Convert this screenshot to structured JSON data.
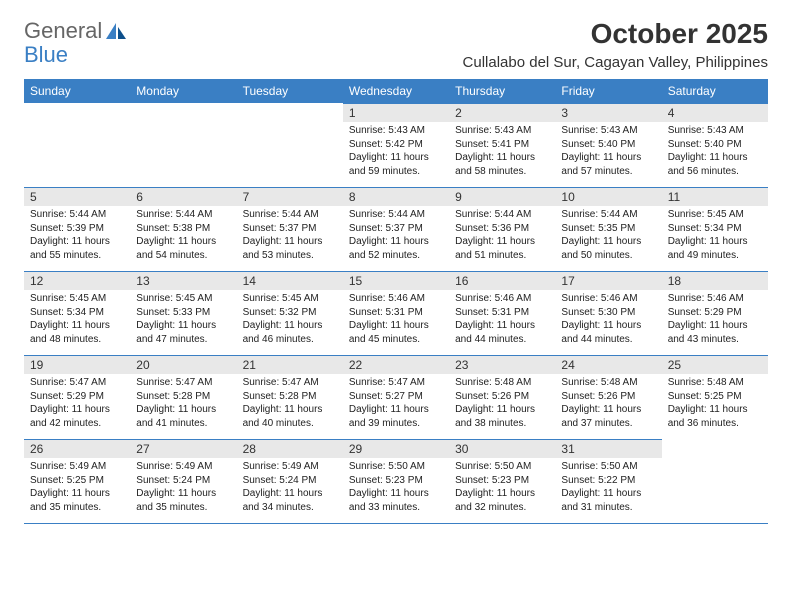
{
  "brand": {
    "part1": "General",
    "part2": "Blue"
  },
  "title": "October 2025",
  "location": "Cullalabo del Sur, Cagayan Valley, Philippines",
  "colors": {
    "header_bg": "#3a7fc4",
    "header_text": "#ffffff",
    "daynum_bg": "#e8e8e8",
    "border": "#3a7fc4",
    "brand_gray": "#666666",
    "brand_blue": "#3a7fc4"
  },
  "weekdays": [
    "Sunday",
    "Monday",
    "Tuesday",
    "Wednesday",
    "Thursday",
    "Friday",
    "Saturday"
  ],
  "weeks": [
    [
      {
        "day": "",
        "sunrise": "",
        "sunset": "",
        "daylight": ""
      },
      {
        "day": "",
        "sunrise": "",
        "sunset": "",
        "daylight": ""
      },
      {
        "day": "",
        "sunrise": "",
        "sunset": "",
        "daylight": ""
      },
      {
        "day": "1",
        "sunrise": "Sunrise: 5:43 AM",
        "sunset": "Sunset: 5:42 PM",
        "daylight": "Daylight: 11 hours and 59 minutes."
      },
      {
        "day": "2",
        "sunrise": "Sunrise: 5:43 AM",
        "sunset": "Sunset: 5:41 PM",
        "daylight": "Daylight: 11 hours and 58 minutes."
      },
      {
        "day": "3",
        "sunrise": "Sunrise: 5:43 AM",
        "sunset": "Sunset: 5:40 PM",
        "daylight": "Daylight: 11 hours and 57 minutes."
      },
      {
        "day": "4",
        "sunrise": "Sunrise: 5:43 AM",
        "sunset": "Sunset: 5:40 PM",
        "daylight": "Daylight: 11 hours and 56 minutes."
      }
    ],
    [
      {
        "day": "5",
        "sunrise": "Sunrise: 5:44 AM",
        "sunset": "Sunset: 5:39 PM",
        "daylight": "Daylight: 11 hours and 55 minutes."
      },
      {
        "day": "6",
        "sunrise": "Sunrise: 5:44 AM",
        "sunset": "Sunset: 5:38 PM",
        "daylight": "Daylight: 11 hours and 54 minutes."
      },
      {
        "day": "7",
        "sunrise": "Sunrise: 5:44 AM",
        "sunset": "Sunset: 5:37 PM",
        "daylight": "Daylight: 11 hours and 53 minutes."
      },
      {
        "day": "8",
        "sunrise": "Sunrise: 5:44 AM",
        "sunset": "Sunset: 5:37 PM",
        "daylight": "Daylight: 11 hours and 52 minutes."
      },
      {
        "day": "9",
        "sunrise": "Sunrise: 5:44 AM",
        "sunset": "Sunset: 5:36 PM",
        "daylight": "Daylight: 11 hours and 51 minutes."
      },
      {
        "day": "10",
        "sunrise": "Sunrise: 5:44 AM",
        "sunset": "Sunset: 5:35 PM",
        "daylight": "Daylight: 11 hours and 50 minutes."
      },
      {
        "day": "11",
        "sunrise": "Sunrise: 5:45 AM",
        "sunset": "Sunset: 5:34 PM",
        "daylight": "Daylight: 11 hours and 49 minutes."
      }
    ],
    [
      {
        "day": "12",
        "sunrise": "Sunrise: 5:45 AM",
        "sunset": "Sunset: 5:34 PM",
        "daylight": "Daylight: 11 hours and 48 minutes."
      },
      {
        "day": "13",
        "sunrise": "Sunrise: 5:45 AM",
        "sunset": "Sunset: 5:33 PM",
        "daylight": "Daylight: 11 hours and 47 minutes."
      },
      {
        "day": "14",
        "sunrise": "Sunrise: 5:45 AM",
        "sunset": "Sunset: 5:32 PM",
        "daylight": "Daylight: 11 hours and 46 minutes."
      },
      {
        "day": "15",
        "sunrise": "Sunrise: 5:46 AM",
        "sunset": "Sunset: 5:31 PM",
        "daylight": "Daylight: 11 hours and 45 minutes."
      },
      {
        "day": "16",
        "sunrise": "Sunrise: 5:46 AM",
        "sunset": "Sunset: 5:31 PM",
        "daylight": "Daylight: 11 hours and 44 minutes."
      },
      {
        "day": "17",
        "sunrise": "Sunrise: 5:46 AM",
        "sunset": "Sunset: 5:30 PM",
        "daylight": "Daylight: 11 hours and 44 minutes."
      },
      {
        "day": "18",
        "sunrise": "Sunrise: 5:46 AM",
        "sunset": "Sunset: 5:29 PM",
        "daylight": "Daylight: 11 hours and 43 minutes."
      }
    ],
    [
      {
        "day": "19",
        "sunrise": "Sunrise: 5:47 AM",
        "sunset": "Sunset: 5:29 PM",
        "daylight": "Daylight: 11 hours and 42 minutes."
      },
      {
        "day": "20",
        "sunrise": "Sunrise: 5:47 AM",
        "sunset": "Sunset: 5:28 PM",
        "daylight": "Daylight: 11 hours and 41 minutes."
      },
      {
        "day": "21",
        "sunrise": "Sunrise: 5:47 AM",
        "sunset": "Sunset: 5:28 PM",
        "daylight": "Daylight: 11 hours and 40 minutes."
      },
      {
        "day": "22",
        "sunrise": "Sunrise: 5:47 AM",
        "sunset": "Sunset: 5:27 PM",
        "daylight": "Daylight: 11 hours and 39 minutes."
      },
      {
        "day": "23",
        "sunrise": "Sunrise: 5:48 AM",
        "sunset": "Sunset: 5:26 PM",
        "daylight": "Daylight: 11 hours and 38 minutes."
      },
      {
        "day": "24",
        "sunrise": "Sunrise: 5:48 AM",
        "sunset": "Sunset: 5:26 PM",
        "daylight": "Daylight: 11 hours and 37 minutes."
      },
      {
        "day": "25",
        "sunrise": "Sunrise: 5:48 AM",
        "sunset": "Sunset: 5:25 PM",
        "daylight": "Daylight: 11 hours and 36 minutes."
      }
    ],
    [
      {
        "day": "26",
        "sunrise": "Sunrise: 5:49 AM",
        "sunset": "Sunset: 5:25 PM",
        "daylight": "Daylight: 11 hours and 35 minutes."
      },
      {
        "day": "27",
        "sunrise": "Sunrise: 5:49 AM",
        "sunset": "Sunset: 5:24 PM",
        "daylight": "Daylight: 11 hours and 35 minutes."
      },
      {
        "day": "28",
        "sunrise": "Sunrise: 5:49 AM",
        "sunset": "Sunset: 5:24 PM",
        "daylight": "Daylight: 11 hours and 34 minutes."
      },
      {
        "day": "29",
        "sunrise": "Sunrise: 5:50 AM",
        "sunset": "Sunset: 5:23 PM",
        "daylight": "Daylight: 11 hours and 33 minutes."
      },
      {
        "day": "30",
        "sunrise": "Sunrise: 5:50 AM",
        "sunset": "Sunset: 5:23 PM",
        "daylight": "Daylight: 11 hours and 32 minutes."
      },
      {
        "day": "31",
        "sunrise": "Sunrise: 5:50 AM",
        "sunset": "Sunset: 5:22 PM",
        "daylight": "Daylight: 11 hours and 31 minutes."
      },
      {
        "day": "",
        "sunrise": "",
        "sunset": "",
        "daylight": ""
      }
    ]
  ]
}
